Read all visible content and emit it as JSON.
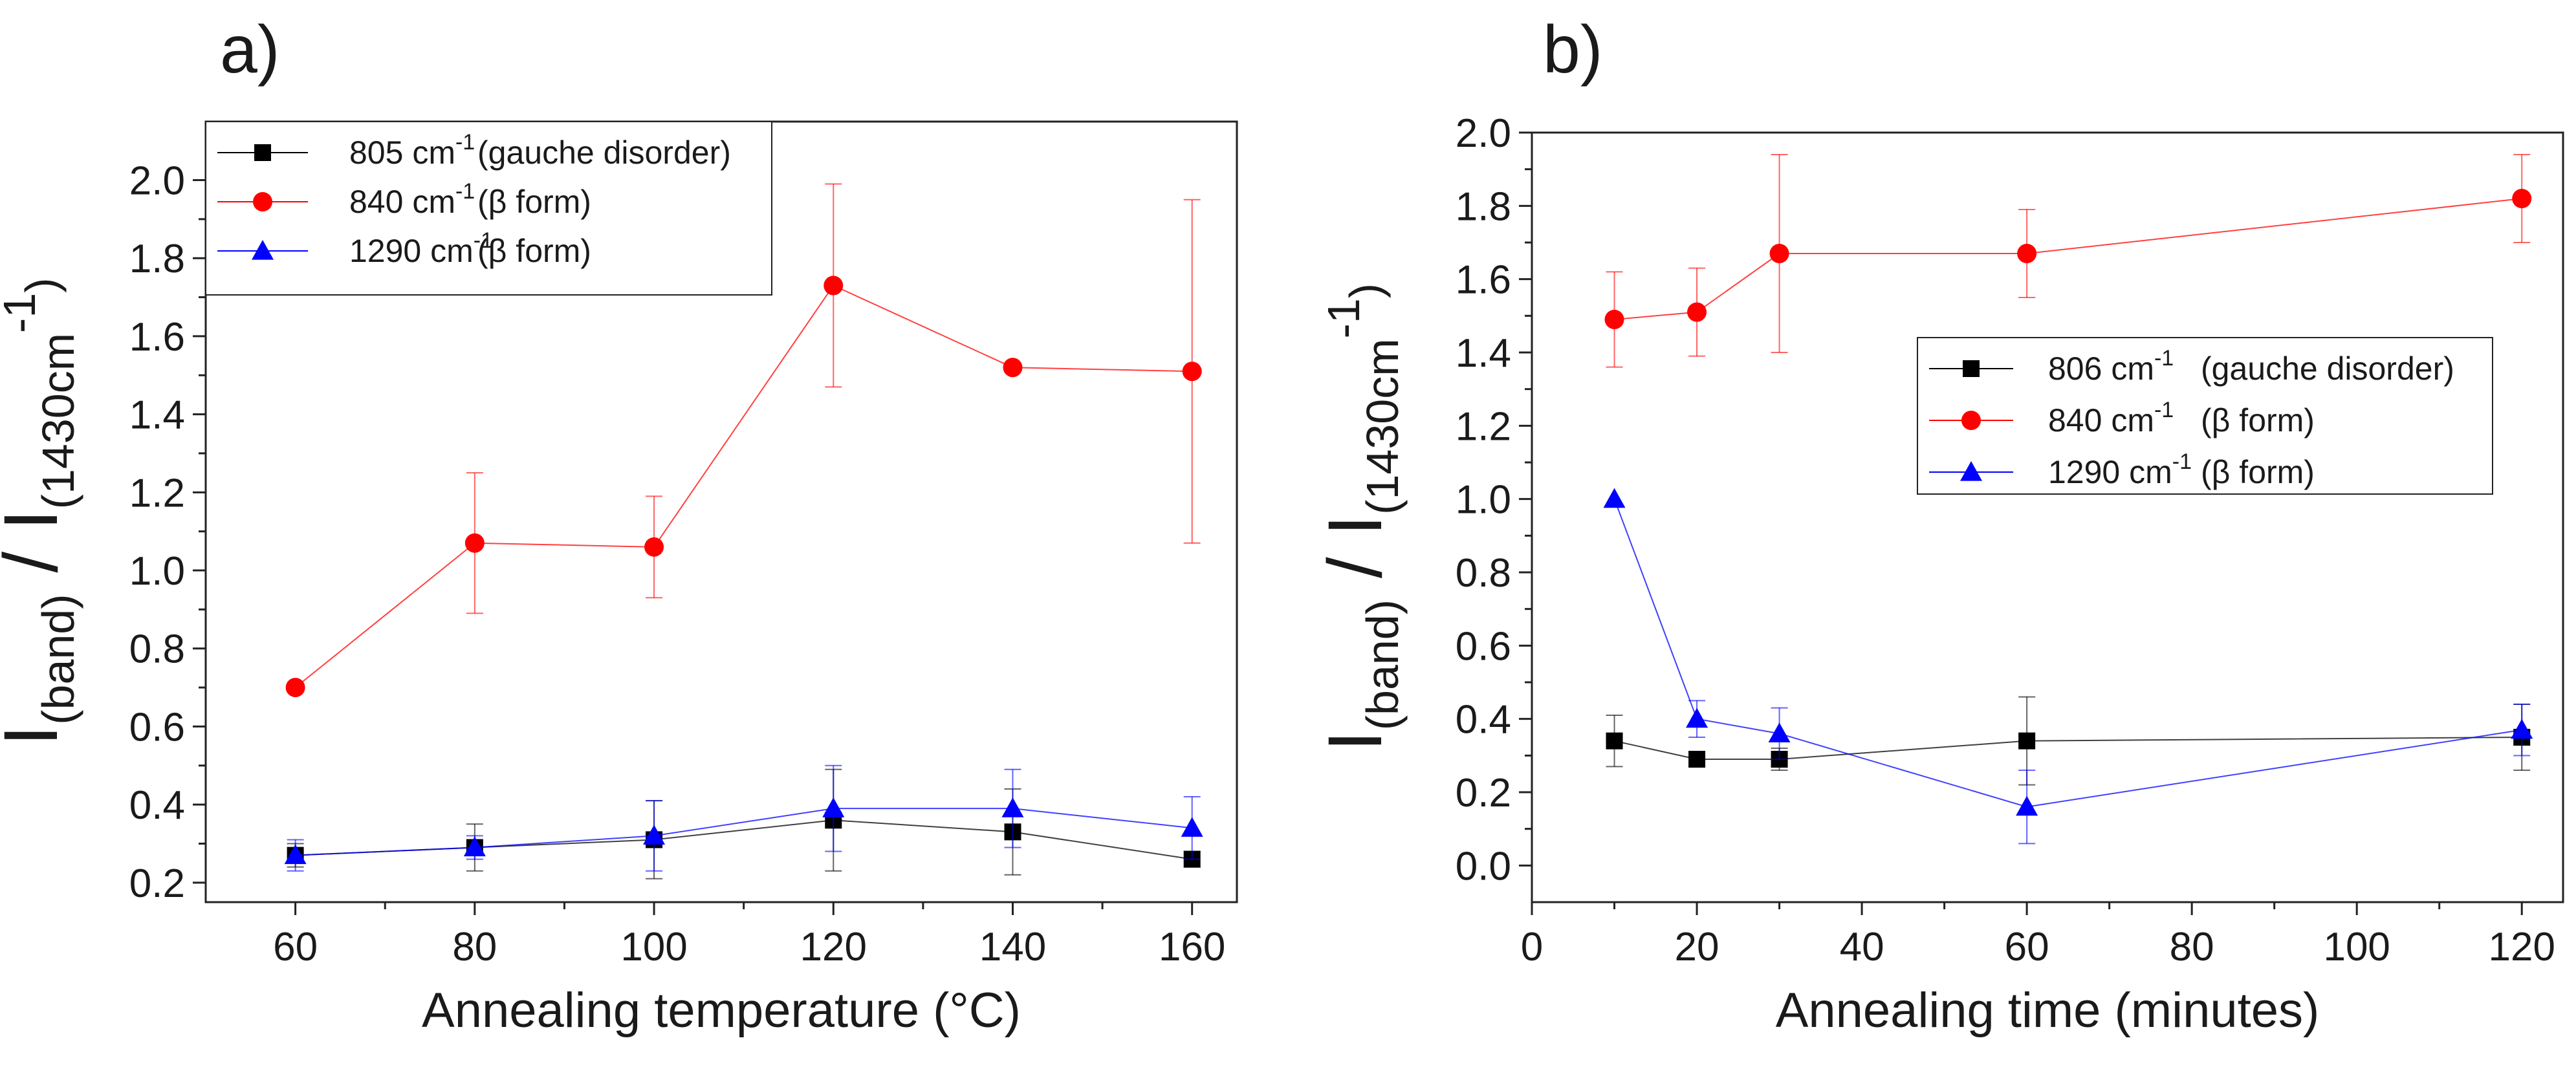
{
  "chart_data": [
    {
      "type": "line",
      "panel_label": "a)",
      "xlabel": "Annealing temperature (°C)",
      "ylabel": {
        "main1": "I",
        "sub1": "(band)",
        "slash": " / I",
        "sub2": "(1430cm",
        "sup2": "-1",
        "close2": ")"
      },
      "xlim": [
        50,
        165
      ],
      "ylim": [
        0.15,
        2.15
      ],
      "xticks": [
        60,
        80,
        100,
        120,
        140,
        160
      ],
      "yticks": [
        0.2,
        0.4,
        0.6,
        0.8,
        1.0,
        1.2,
        1.4,
        1.6,
        1.8,
        2.0
      ],
      "xtick_labels": [
        "60",
        "80",
        "100",
        "120",
        "140",
        "160"
      ],
      "ytick_labels": [
        "0.2",
        "0.4",
        "0.6",
        "0.8",
        "1.0",
        "1.2",
        "1.4",
        "1.6",
        "1.8",
        "2.0"
      ],
      "legend_position": "top-left",
      "series": [
        {
          "name": "805 cm",
          "sup": "-1",
          "note": "(gauche disorder)",
          "color": "#000000",
          "marker": "square",
          "x": [
            60,
            80,
            100,
            120,
            140,
            160
          ],
          "y": [
            0.27,
            0.29,
            0.31,
            0.36,
            0.33,
            0.26
          ],
          "err": [
            0.03,
            0.06,
            0.1,
            0.13,
            0.11,
            0.02
          ]
        },
        {
          "name": "840 cm",
          "sup": "-1",
          "note": "(β form)",
          "color": "#ff0000",
          "marker": "circle",
          "x": [
            60,
            80,
            100,
            120,
            140,
            160
          ],
          "y": [
            0.7,
            1.07,
            1.06,
            1.73,
            1.52,
            1.51
          ],
          "err": [
            0.0,
            0.18,
            0.13,
            0.26,
            0.0,
            0.44
          ]
        },
        {
          "name": "1290 cm",
          "sup": "-1",
          "note": "(β form)",
          "color": "#0000ff",
          "marker": "triangle",
          "x": [
            60,
            80,
            100,
            120,
            140,
            160
          ],
          "y": [
            0.27,
            0.29,
            0.32,
            0.39,
            0.39,
            0.34
          ],
          "err": [
            0.04,
            0.03,
            0.09,
            0.11,
            0.1,
            0.08
          ]
        }
      ]
    },
    {
      "type": "line",
      "panel_label": "b)",
      "xlabel": "Annealing time (minutes)",
      "ylabel": {
        "main1": "I",
        "sub1": "(band)",
        "slash": " / I",
        "sub2": "(1430cm",
        "sup2": "-1",
        "close2": ")"
      },
      "xlim": [
        0,
        125
      ],
      "ylim": [
        -0.1,
        2.0
      ],
      "xticks": [
        0,
        20,
        40,
        60,
        80,
        100,
        120
      ],
      "yticks": [
        0.0,
        0.2,
        0.4,
        0.6,
        0.8,
        1.0,
        1.2,
        1.4,
        1.6,
        1.8,
        2.0
      ],
      "xtick_labels": [
        "0",
        "20",
        "40",
        "60",
        "80",
        "100",
        "120"
      ],
      "ytick_labels": [
        "0.0",
        "0.2",
        "0.4",
        "0.6",
        "0.8",
        "1.0",
        "1.2",
        "1.4",
        "1.6",
        "1.8",
        "2.0"
      ],
      "legend_position": "right",
      "series": [
        {
          "name": "806   cm",
          "sup": "-1",
          "note": "(gauche disorder)",
          "color": "#000000",
          "marker": "square",
          "x": [
            10,
            20,
            30,
            60,
            120
          ],
          "y": [
            0.34,
            0.29,
            0.29,
            0.34,
            0.35
          ],
          "err": [
            0.07,
            0.02,
            0.03,
            0.12,
            0.09
          ]
        },
        {
          "name": "840   cm",
          "sup": "-1",
          "note": "(β form)",
          "color": "#ff0000",
          "marker": "circle",
          "x": [
            10,
            20,
            30,
            60,
            120
          ],
          "y": [
            1.49,
            1.51,
            1.67,
            1.67,
            1.82
          ],
          "err": [
            0.13,
            0.12,
            0.27,
            0.12,
            0.12
          ]
        },
        {
          "name": "1290 cm",
          "sup": "-1",
          "note": "(β form)",
          "color": "#0000ff",
          "marker": "triangle",
          "x": [
            10,
            20,
            30,
            60,
            120
          ],
          "y": [
            1.0,
            0.4,
            0.36,
            0.16,
            0.37
          ],
          "err": [
            0.0,
            0.05,
            0.07,
            0.1,
            0.07
          ]
        }
      ]
    }
  ]
}
